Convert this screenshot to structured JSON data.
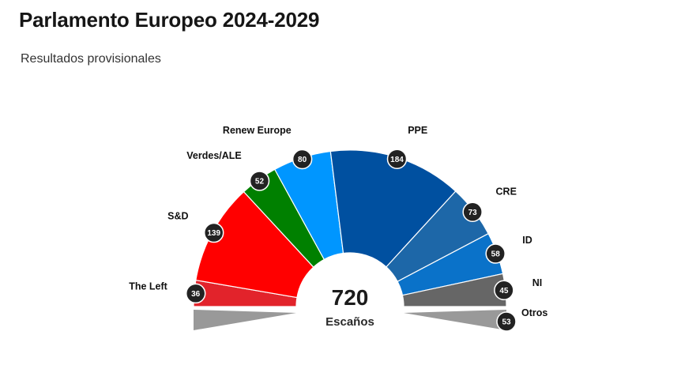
{
  "header": {
    "title": "Parlamento Europeo 2024-2029",
    "subtitle": "Resultados provisionales"
  },
  "chart_data": {
    "type": "pie",
    "subtype": "parliament-semicircle",
    "total": "720",
    "total_label": "Escaños",
    "series": [
      {
        "name": "The Left",
        "value": 36,
        "color": "#e2232b"
      },
      {
        "name": "S&D",
        "value": 139,
        "color": "#ff0000"
      },
      {
        "name": "Verdes/ALE",
        "value": 52,
        "color": "#008000"
      },
      {
        "name": "Renew Europe",
        "value": 80,
        "color": "#0096ff"
      },
      {
        "name": "PPE",
        "value": 184,
        "color": "#0050a0"
      },
      {
        "name": "CRE",
        "value": 73,
        "color": "#1d67a8"
      },
      {
        "name": "ID",
        "value": 58,
        "color": "#0a72c9"
      },
      {
        "name": "NI",
        "value": 45,
        "color": "#666666"
      }
    ],
    "otros": {
      "name": "Otros",
      "value": 53,
      "color": "#999999"
    }
  }
}
